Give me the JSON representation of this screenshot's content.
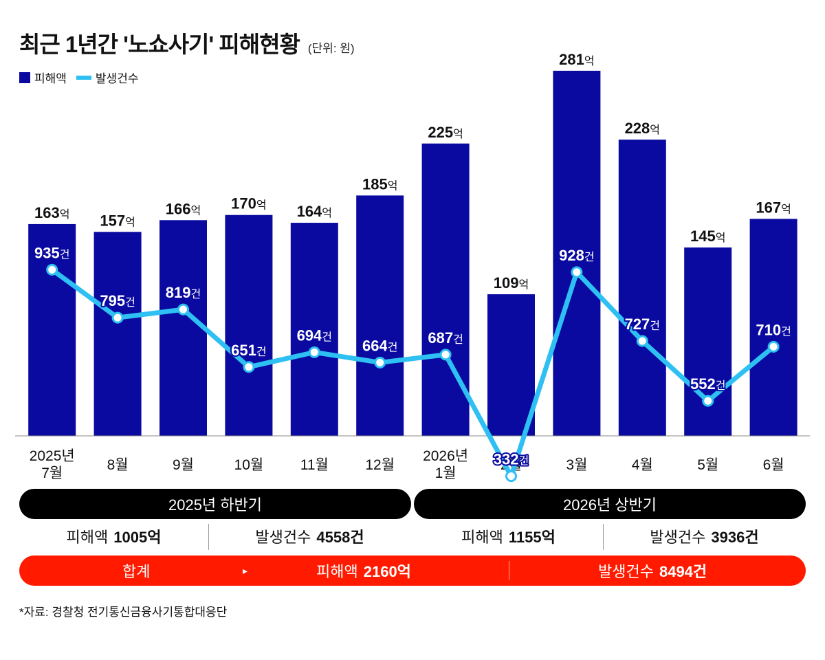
{
  "title": "최근 1년간 '노쇼사기' 피해현황",
  "unit": "(단위: 원)",
  "legend": {
    "bar": "피해액",
    "line": "발생건수"
  },
  "colors": {
    "bar": "#0a0aa0",
    "line": "#2ec0f2",
    "pill": "#000000",
    "total": "#ff1a00"
  },
  "chart_data": {
    "type": "bar",
    "categories": [
      "2025년\n7월",
      "8월",
      "9월",
      "10월",
      "11월",
      "12월",
      "2026년\n1월",
      "2월",
      "3월",
      "4월",
      "5월",
      "6월"
    ],
    "series": [
      {
        "name": "피해액",
        "type": "bar",
        "values": [
          163,
          157,
          166,
          170,
          164,
          185,
          225,
          109,
          281,
          228,
          145,
          167
        ],
        "suffix": "억"
      },
      {
        "name": "발생건수",
        "type": "line",
        "values": [
          935,
          795,
          819,
          651,
          694,
          664,
          687,
          332,
          928,
          727,
          552,
          710
        ],
        "suffix": "건"
      }
    ]
  },
  "halves": [
    {
      "label": "2025년 하반기",
      "damage_label": "피해액",
      "damage_value": "1005억",
      "count_label": "발생건수",
      "count_value": "4558건"
    },
    {
      "label": "2026년 상반기",
      "damage_label": "피해액",
      "damage_value": "1155억",
      "count_label": "발생건수",
      "count_value": "3936건"
    }
  ],
  "total": {
    "label": "합계",
    "arrow": "▸",
    "damage_label": "피해액",
    "damage_value": "2160억",
    "count_label": "발생건수",
    "count_value": "8494건"
  },
  "source": "*자료: 경찰청 전기통신금융사기통합대응단"
}
